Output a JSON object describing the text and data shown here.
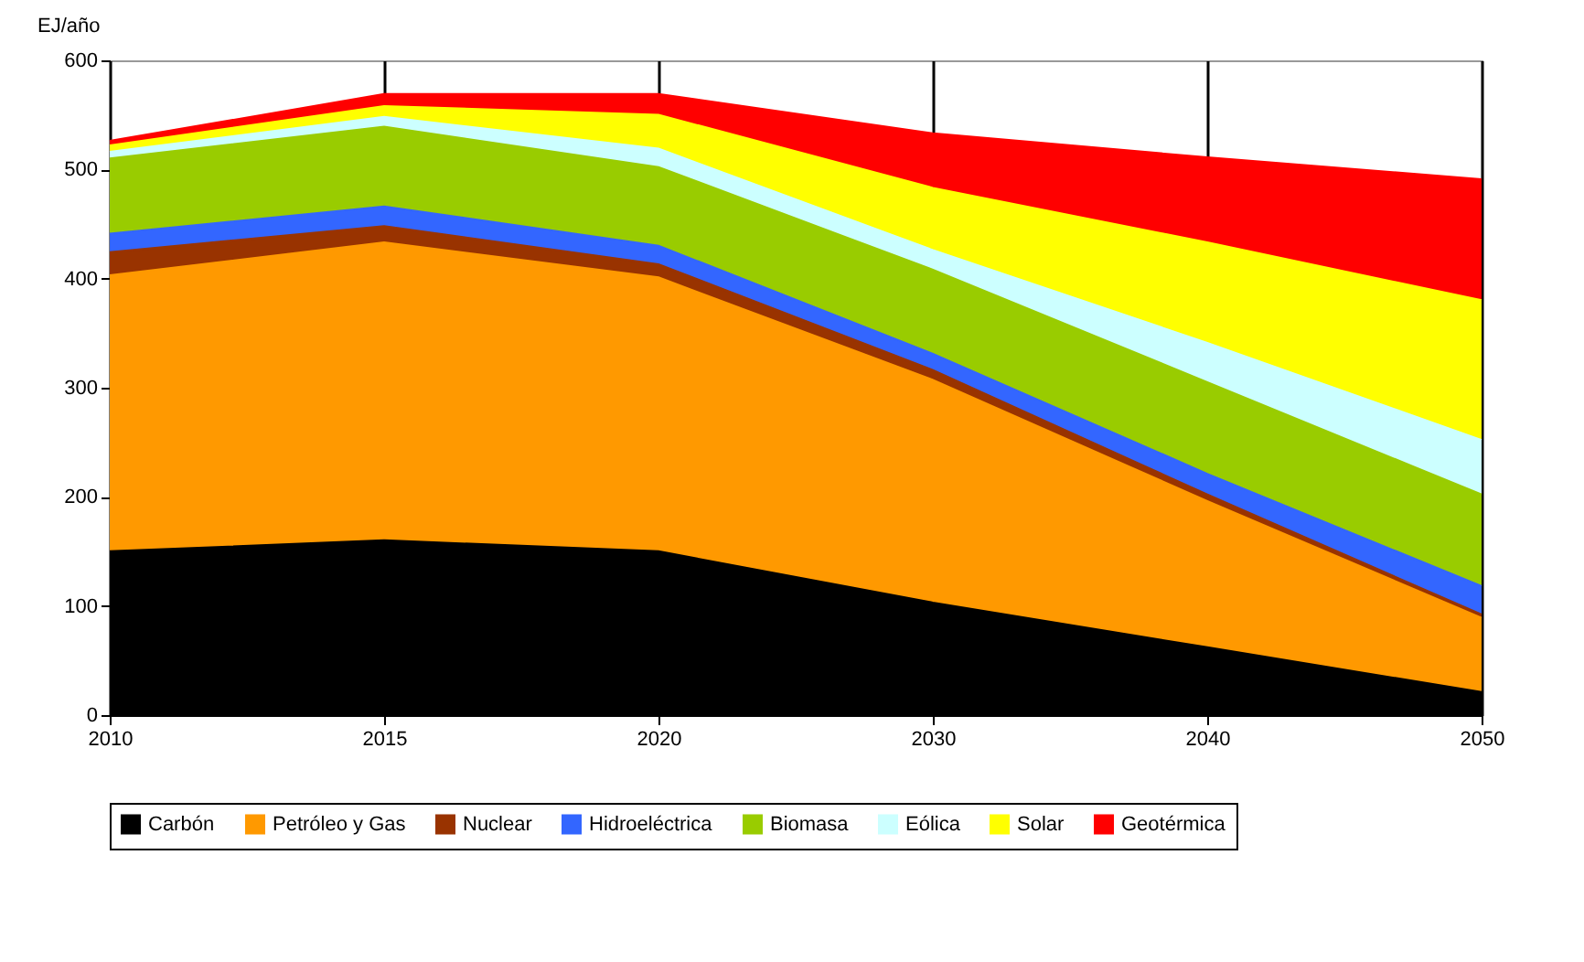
{
  "chart_data": {
    "type": "area",
    "stacked": true,
    "ylabel": "EJ/año",
    "categories": [
      "2010",
      "2015",
      "2020",
      "2030",
      "2040",
      "2050"
    ],
    "ylim": [
      0,
      600
    ],
    "yticks": [
      0,
      100,
      200,
      300,
      400,
      500,
      600
    ],
    "grid": "x",
    "legend": "bottom",
    "series": [
      {
        "name": "Carbón",
        "color": "#000000",
        "values": [
          150,
          160,
          150,
          103,
          62,
          21
        ]
      },
      {
        "name": "Petróleo y Gas",
        "color": "#ff9900",
        "values": [
          253,
          273,
          251,
          204,
          134,
          68
        ]
      },
      {
        "name": "Nuclear",
        "color": "#993300",
        "values": [
          21,
          15,
          12,
          9,
          6,
          3
        ]
      },
      {
        "name": "Hidroeléctrica",
        "color": "#3366ff",
        "values": [
          17,
          18,
          17,
          15,
          19,
          26
        ]
      },
      {
        "name": "Biomasa",
        "color": "#99cc00",
        "values": [
          69,
          73,
          72,
          77,
          84,
          84
        ]
      },
      {
        "name": "Eólica",
        "color": "#ccffff",
        "values": [
          6,
          9,
          17,
          18,
          36,
          50
        ]
      },
      {
        "name": "Solar",
        "color": "#ffff00",
        "values": [
          6,
          10,
          31,
          57,
          92,
          128
        ]
      },
      {
        "name": "Geotérmica",
        "color": "#ff0000",
        "values": [
          4,
          11,
          19,
          50,
          78,
          111
        ]
      }
    ]
  }
}
